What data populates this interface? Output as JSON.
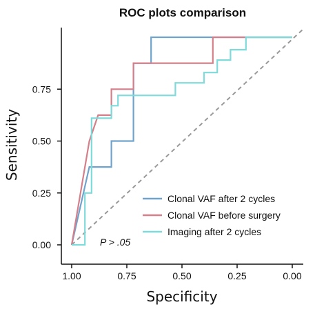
{
  "chart_data": {
    "type": "line",
    "title": "ROC plots comparison",
    "xlabel": "Specificity",
    "ylabel": "Sensitivity",
    "x_reversed": true,
    "xlim": [
      1.0,
      0.0
    ],
    "ylim": [
      0.0,
      1.0
    ],
    "xticks": [
      "1.00",
      "0.75",
      "0.50",
      "0.25",
      "0.00"
    ],
    "xtick_values": [
      1.0,
      0.75,
      0.5,
      0.25,
      0.0
    ],
    "yticks": [
      "0.00",
      "0.25",
      "0.50",
      "0.75"
    ],
    "ytick_values": [
      0.0,
      0.25,
      0.5,
      0.75
    ],
    "grid": false,
    "legend_position": "bottom-right",
    "annotation": "P > .05",
    "reference_line": {
      "from": [
        1.0,
        0.0
      ],
      "to": [
        0.0,
        1.0
      ],
      "color": "#999999",
      "style": "dashed"
    },
    "series": [
      {
        "name": "Clonal VAF after 2 cycles",
        "color": "#6FA3CC",
        "x": [
          1.0,
          0.92,
          0.92,
          0.82,
          0.82,
          0.72,
          0.72,
          0.64,
          0.64,
          0.0
        ],
        "y": [
          0.0,
          0.375,
          0.375,
          0.375,
          0.5,
          0.5,
          0.875,
          0.875,
          1.0,
          1.0
        ]
      },
      {
        "name": "Clonal VAF  before surgery",
        "color": "#D47F8A",
        "x": [
          1.0,
          0.92,
          0.92,
          0.88,
          0.88,
          0.82,
          0.82,
          0.72,
          0.72,
          0.36,
          0.36,
          0.0
        ],
        "y": [
          0.0,
          0.5,
          0.5,
          0.625,
          0.625,
          0.625,
          0.75,
          0.75,
          0.875,
          0.875,
          1.0,
          1.0
        ]
      },
      {
        "name": "Imaging after 2 cycles",
        "color": "#7FDADA",
        "x": [
          1.0,
          0.94,
          0.94,
          0.91,
          0.91,
          0.86,
          0.86,
          0.82,
          0.82,
          0.79,
          0.79,
          0.63,
          0.63,
          0.53,
          0.53,
          0.4,
          0.4,
          0.34,
          0.34,
          0.28,
          0.28,
          0.21,
          0.21,
          0.0
        ],
        "y": [
          0.0,
          0.0,
          0.25,
          0.25,
          0.61,
          0.61,
          0.61,
          0.61,
          0.67,
          0.67,
          0.72,
          0.72,
          0.72,
          0.72,
          0.78,
          0.78,
          0.83,
          0.83,
          0.89,
          0.89,
          0.94,
          0.94,
          1.0,
          1.0
        ]
      }
    ]
  }
}
